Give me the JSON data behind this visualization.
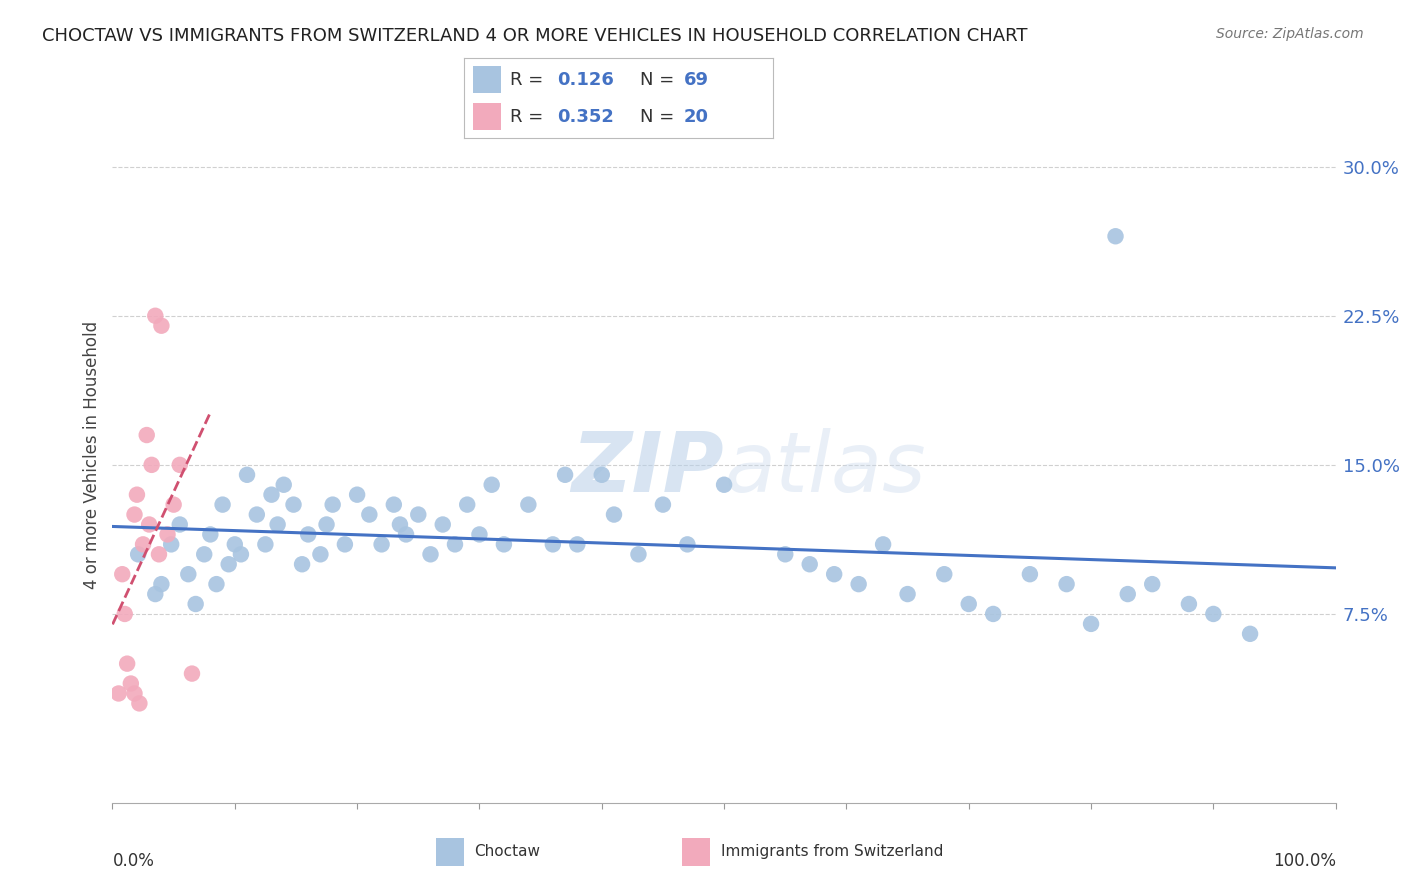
{
  "title": "CHOCTAW VS IMMIGRANTS FROM SWITZERLAND 4 OR MORE VEHICLES IN HOUSEHOLD CORRELATION CHART",
  "source": "Source: ZipAtlas.com",
  "ylabel": "4 or more Vehicles in Household",
  "watermark": "ZIPatlas",
  "xmin": 0.0,
  "xmax": 100.0,
  "ymin": -2.0,
  "ymax": 33.0,
  "ytick_vals": [
    7.5,
    15.0,
    22.5,
    30.0
  ],
  "ytick_labels": [
    "7.5%",
    "15.0%",
    "22.5%",
    "30.0%"
  ],
  "xtick_vals": [
    0,
    10,
    20,
    30,
    40,
    50,
    60,
    70,
    80,
    90,
    100
  ],
  "choctaw_color": "#a8c4e0",
  "swiss_color": "#f2aabc",
  "trendline_choctaw_color": "#4472c4",
  "trendline_swiss_color": "#d05070",
  "grid_color": "#d0d0d0",
  "background_color": "#ffffff",
  "choctaw_x": [
    2.1,
    3.5,
    4.0,
    4.8,
    5.5,
    6.2,
    6.8,
    7.5,
    8.0,
    8.5,
    9.0,
    9.5,
    10.0,
    10.5,
    11.0,
    11.8,
    12.5,
    13.0,
    13.5,
    14.0,
    14.8,
    15.5,
    16.0,
    17.0,
    17.5,
    18.0,
    19.0,
    20.0,
    21.0,
    22.0,
    23.0,
    23.5,
    24.0,
    25.0,
    26.0,
    27.0,
    28.0,
    29.0,
    30.0,
    31.0,
    32.0,
    34.0,
    36.0,
    37.0,
    38.0,
    40.0,
    41.0,
    43.0,
    45.0,
    47.0,
    50.0,
    55.0,
    57.0,
    59.0,
    61.0,
    63.0,
    65.0,
    68.0,
    70.0,
    72.0,
    75.0,
    78.0,
    80.0,
    83.0,
    85.0,
    88.0,
    90.0,
    93.0,
    82.0
  ],
  "choctaw_y": [
    10.5,
    8.5,
    9.0,
    11.0,
    12.0,
    9.5,
    8.0,
    10.5,
    11.5,
    9.0,
    13.0,
    10.0,
    11.0,
    10.5,
    14.5,
    12.5,
    11.0,
    13.5,
    12.0,
    14.0,
    13.0,
    10.0,
    11.5,
    10.5,
    12.0,
    13.0,
    11.0,
    13.5,
    12.5,
    11.0,
    13.0,
    12.0,
    11.5,
    12.5,
    10.5,
    12.0,
    11.0,
    13.0,
    11.5,
    14.0,
    11.0,
    13.0,
    11.0,
    14.5,
    11.0,
    14.5,
    12.5,
    10.5,
    13.0,
    11.0,
    14.0,
    10.5,
    10.0,
    9.5,
    9.0,
    11.0,
    8.5,
    9.5,
    8.0,
    7.5,
    9.5,
    9.0,
    7.0,
    8.5,
    9.0,
    8.0,
    7.5,
    6.5,
    26.5
  ],
  "swiss_x": [
    0.5,
    0.8,
    1.0,
    1.2,
    1.5,
    1.8,
    1.8,
    2.0,
    2.2,
    2.5,
    2.8,
    3.0,
    3.2,
    3.5,
    3.8,
    4.0,
    4.5,
    5.0,
    5.5,
    6.5
  ],
  "swiss_y": [
    3.5,
    9.5,
    7.5,
    5.0,
    4.0,
    12.5,
    3.5,
    13.5,
    3.0,
    11.0,
    16.5,
    12.0,
    15.0,
    22.5,
    10.5,
    22.0,
    11.5,
    13.0,
    15.0,
    4.5
  ],
  "choctaw_label": "Choctaw",
  "swiss_label": "Immigrants from Switzerland",
  "r1": "0.126",
  "n1": "69",
  "r2": "0.352",
  "n2": "20"
}
